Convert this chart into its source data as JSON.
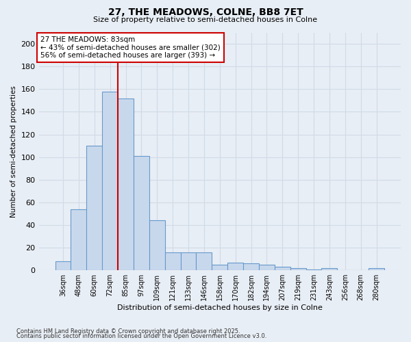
{
  "title1": "27, THE MEADOWS, COLNE, BB8 7ET",
  "title2": "Size of property relative to semi-detached houses in Colne",
  "xlabel": "Distribution of semi-detached houses by size in Colne",
  "ylabel": "Number of semi-detached properties",
  "categories": [
    "36sqm",
    "48sqm",
    "60sqm",
    "72sqm",
    "85sqm",
    "97sqm",
    "109sqm",
    "121sqm",
    "133sqm",
    "146sqm",
    "158sqm",
    "170sqm",
    "182sqm",
    "194sqm",
    "207sqm",
    "219sqm",
    "231sqm",
    "243sqm",
    "256sqm",
    "268sqm",
    "280sqm"
  ],
  "values": [
    8,
    54,
    110,
    158,
    152,
    101,
    44,
    16,
    16,
    16,
    5,
    7,
    6,
    5,
    3,
    2,
    1,
    2,
    0,
    0,
    2
  ],
  "bar_color": "#c8d8ec",
  "bar_edge_color": "#6699cc",
  "red_line_x": 3.5,
  "red_line_color": "#cc0000",
  "annotation_text": "27 THE MEADOWS: 83sqm\n← 43% of semi-detached houses are smaller (302)\n56% of semi-detached houses are larger (393) →",
  "annotation_box_color": "#ffffff",
  "annotation_box_edge": "#cc0000",
  "ylim": [
    0,
    210
  ],
  "yticks": [
    0,
    20,
    40,
    60,
    80,
    100,
    120,
    140,
    160,
    180,
    200
  ],
  "footnote1": "Contains HM Land Registry data © Crown copyright and database right 2025.",
  "footnote2": "Contains public sector information licensed under the Open Government Licence v3.0.",
  "bg_color": "#e8eef5",
  "grid_color": "#d0dae6"
}
